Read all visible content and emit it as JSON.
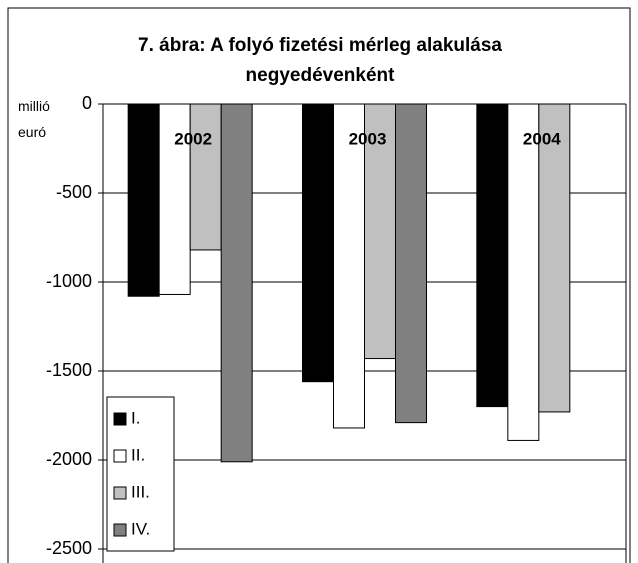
{
  "chart_data": {
    "type": "bar",
    "title": "7. ábra: A folyó fizetési mérleg alakulása negyedévenként",
    "y_label": "millió euró",
    "categories": [
      "2002",
      "2003",
      "2004"
    ],
    "series": [
      {
        "name": "I.",
        "color": "#000000",
        "values": [
          -1080,
          -1560,
          -1700
        ]
      },
      {
        "name": "II.",
        "color": "#ffffff",
        "values": [
          -1070,
          -1820,
          -1890
        ]
      },
      {
        "name": "III.",
        "color": "#c0c0c0",
        "values": [
          -820,
          -1430,
          -1730
        ]
      },
      {
        "name": "IV.",
        "color": "#808080",
        "values": [
          -2010,
          -1790,
          null
        ]
      }
    ],
    "ylim": [
      -2500,
      0
    ],
    "yticks": [
      0,
      -500,
      -1000,
      -1500,
      -2000,
      -2500
    ],
    "grid": true,
    "legend": "lower left"
  }
}
